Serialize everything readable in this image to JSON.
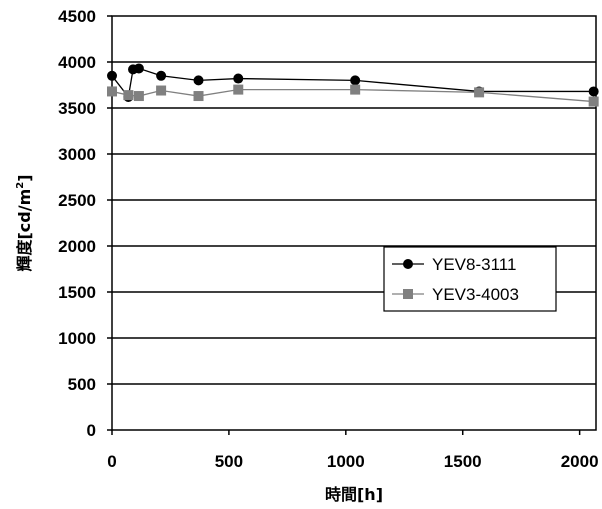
{
  "chart_data": {
    "type": "line",
    "title": "",
    "xlabel": "時間[h]",
    "ylabel": "輝度[cd/m²]",
    "ylabel_parts": {
      "main": "輝度[cd/m",
      "sup": "2",
      "end": "]"
    },
    "xlim": [
      0,
      2070
    ],
    "ylim": [
      0,
      4500
    ],
    "xticks": [
      0,
      500,
      1000,
      1500,
      2000
    ],
    "xtick_labels": [
      "0",
      "500",
      "1000",
      "1500",
      "2000"
    ],
    "yticks": [
      0,
      500,
      1000,
      1500,
      2000,
      2500,
      3000,
      3500,
      4000,
      4500
    ],
    "ytick_labels": [
      "0",
      "500",
      "1000",
      "1500",
      "2000",
      "2500",
      "3000",
      "3500",
      "4000",
      "4500"
    ],
    "grid": "horizontal",
    "legend_position": "right-middle",
    "series": [
      {
        "name": "YEV8-3111",
        "marker": "circle",
        "color": "#000000",
        "x": [
          0,
          70,
          90,
          115,
          210,
          370,
          540,
          1040,
          1570,
          2060
        ],
        "y": [
          3850,
          3620,
          3920,
          3930,
          3850,
          3800,
          3820,
          3800,
          3680,
          3680
        ]
      },
      {
        "name": "YEV3-4003",
        "marker": "square",
        "color": "#808080",
        "x": [
          0,
          70,
          115,
          210,
          370,
          540,
          1040,
          1570,
          2060
        ],
        "y": [
          3680,
          3640,
          3630,
          3690,
          3630,
          3700,
          3700,
          3670,
          3570
        ]
      }
    ]
  }
}
